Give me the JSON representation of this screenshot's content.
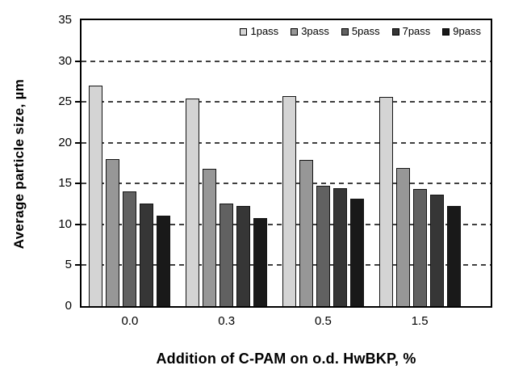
{
  "chart_data": {
    "type": "bar",
    "title": "",
    "xlabel": "Addition of C-PAM on o.d. HwBKP, %",
    "ylabel": "Average particle size, µm",
    "ylim": [
      0,
      35
    ],
    "ytick_step": 5,
    "yticks": [
      0,
      5,
      10,
      15,
      20,
      25,
      30,
      35
    ],
    "grid": "horizontal-dashed",
    "legend_position": "top-right-inside",
    "categories": [
      "0.0",
      "0.3",
      "0.5",
      "1.5"
    ],
    "series": [
      {
        "name": "1pass",
        "color": "#d4d4d4",
        "values": [
          27.0,
          25.4,
          25.7,
          25.6
        ]
      },
      {
        "name": "3pass",
        "color": "#979797",
        "values": [
          18.0,
          16.8,
          17.9,
          16.9
        ]
      },
      {
        "name": "5pass",
        "color": "#616161",
        "values": [
          14.0,
          12.6,
          14.7,
          14.3
        ]
      },
      {
        "name": "7pass",
        "color": "#363636",
        "values": [
          12.6,
          12.3,
          14.4,
          13.6
        ]
      },
      {
        "name": "9pass",
        "color": "#191919",
        "values": [
          11.1,
          10.8,
          13.2,
          12.3
        ]
      }
    ]
  }
}
